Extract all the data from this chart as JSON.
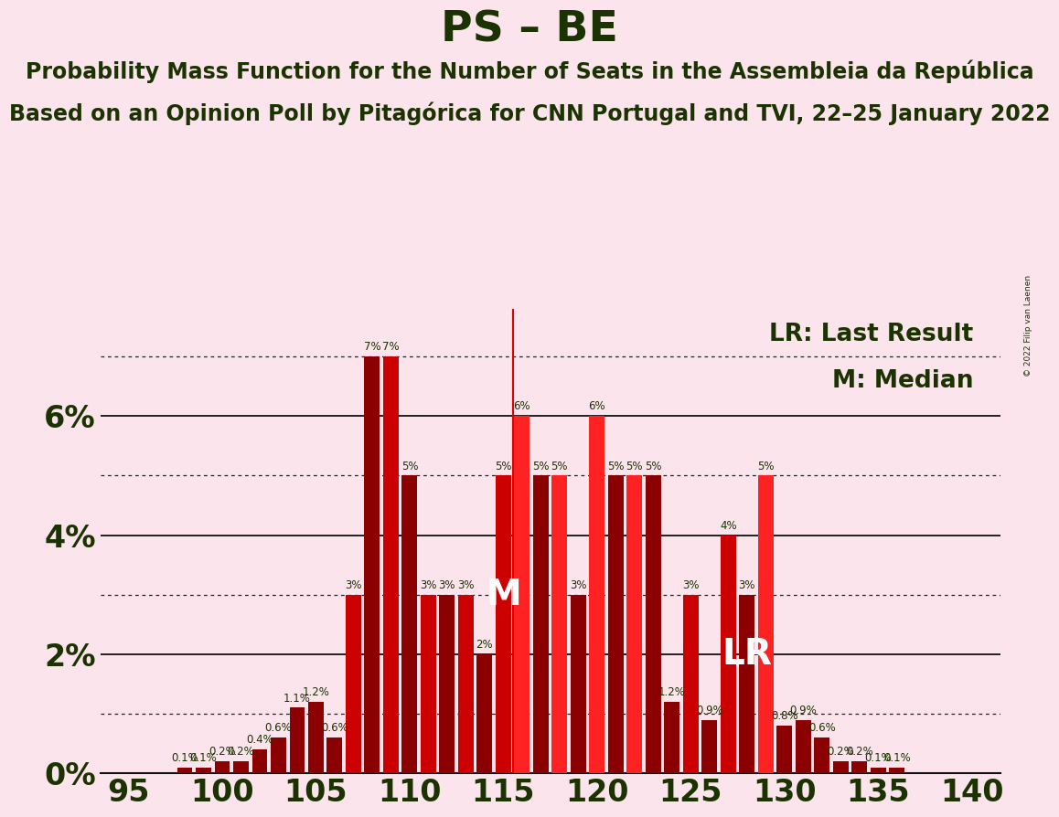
{
  "title": "PS – BE",
  "subtitle1": "Probability Mass Function for the Number of Seats in the Assembleia da República",
  "subtitle2": "Based on an Opinion Poll by Pitagórica for CNN Portugal and TVI, 22–25 January 2022",
  "copyright": "© 2022 Filip van Laenen",
  "background_color": "#fce4ec",
  "legend_lr": "LR: Last Result",
  "legend_m": "M: Median",
  "median_label": "M",
  "lr_label": "LR",
  "last_result": 115.5,
  "median": 115,
  "seats": [
    95,
    96,
    97,
    98,
    99,
    100,
    101,
    102,
    103,
    104,
    105,
    106,
    107,
    108,
    109,
    110,
    111,
    112,
    113,
    114,
    115,
    116,
    117,
    118,
    119,
    120,
    121,
    122,
    123,
    124,
    125,
    126,
    127,
    128,
    129,
    130,
    131,
    132,
    133,
    134,
    135,
    136,
    137,
    138,
    139,
    140
  ],
  "probabilities": [
    0.0,
    0.0,
    0.0,
    0.1,
    0.1,
    0.2,
    0.2,
    0.4,
    0.6,
    1.1,
    1.2,
    0.6,
    3.0,
    7.0,
    7.0,
    5.0,
    3.0,
    3.0,
    3.0,
    2.0,
    5.0,
    6.0,
    5.0,
    5.0,
    3.0,
    6.0,
    5.0,
    5.0,
    5.0,
    1.2,
    3.0,
    0.9,
    4.0,
    3.0,
    5.0,
    0.8,
    0.9,
    0.6,
    0.2,
    0.2,
    0.1,
    0.1,
    0.0,
    0.0,
    0.0,
    0.0
  ],
  "bar_colors": [
    "#8b0000",
    "#8b0000",
    "#8b0000",
    "#8b0000",
    "#8b0000",
    "#8b0000",
    "#8b0000",
    "#8b0000",
    "#8b0000",
    "#8b0000",
    "#8b0000",
    "#8b0000",
    "#cc0000",
    "#8b0000",
    "#cc0000",
    "#8b0000",
    "#cc0000",
    "#8b0000",
    "#cc0000",
    "#8b0000",
    "#cc0000",
    "#ff2222",
    "#8b0000",
    "#ff2222",
    "#8b0000",
    "#ff2222",
    "#8b0000",
    "#ff2222",
    "#8b0000",
    "#8b0000",
    "#cc0000",
    "#8b0000",
    "#cc0000",
    "#8b0000",
    "#ff2222",
    "#8b0000",
    "#8b0000",
    "#8b0000",
    "#8b0000",
    "#8b0000",
    "#8b0000",
    "#8b0000",
    "#8b0000",
    "#8b0000",
    "#8b0000",
    "#8b0000"
  ],
  "title_fontsize": 34,
  "subtitle_fontsize": 17,
  "axis_tick_fontsize": 24,
  "bar_label_fontsize": 8.5,
  "annotation_fontsize": 28,
  "legend_fontsize": 19
}
